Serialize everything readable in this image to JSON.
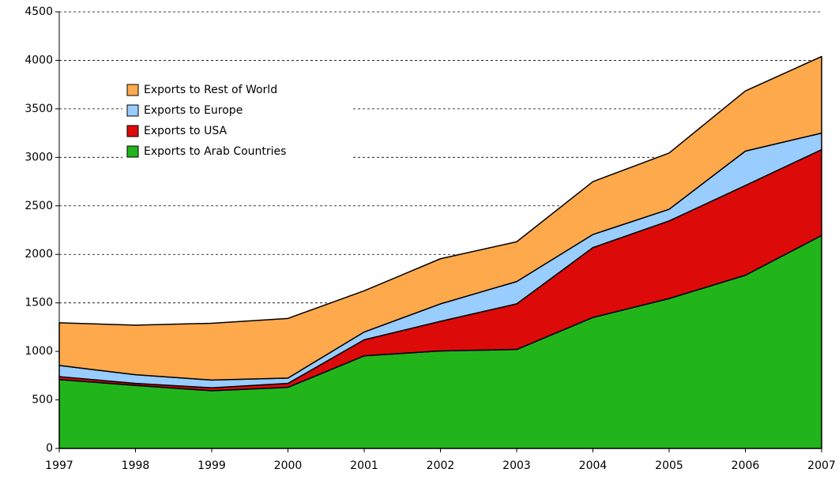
{
  "chart_data": {
    "type": "stacked_area",
    "categories": [
      "1997",
      "1998",
      "1999",
      "2000",
      "2001",
      "2002",
      "2003",
      "2004",
      "2005",
      "2006",
      "2007"
    ],
    "series": [
      {
        "name": "Exports to Arab Countries",
        "color": "#22b41b",
        "values": [
          710,
          650,
          595,
          630,
          955,
          1005,
          1020,
          1350,
          1545,
          1785,
          2195
        ]
      },
      {
        "name": "Exports to USA",
        "color": "#dd0a0a",
        "values": [
          30,
          20,
          30,
          40,
          165,
          305,
          470,
          720,
          800,
          925,
          885
        ]
      },
      {
        "name": "Exports to Europe",
        "color": "#99ccff",
        "values": [
          115,
          90,
          80,
          55,
          80,
          180,
          230,
          135,
          120,
          355,
          170
        ]
      },
      {
        "name": "Exports to Rest of World",
        "color": "#ffa94d",
        "values": [
          440,
          510,
          585,
          615,
          425,
          465,
          410,
          545,
          580,
          620,
          790
        ]
      }
    ],
    "ylim": [
      0,
      4500
    ],
    "yticks": [
      0,
      500,
      1000,
      1500,
      2000,
      2500,
      3000,
      3500,
      4000,
      4500
    ],
    "grid": true,
    "legend": "upper left"
  }
}
